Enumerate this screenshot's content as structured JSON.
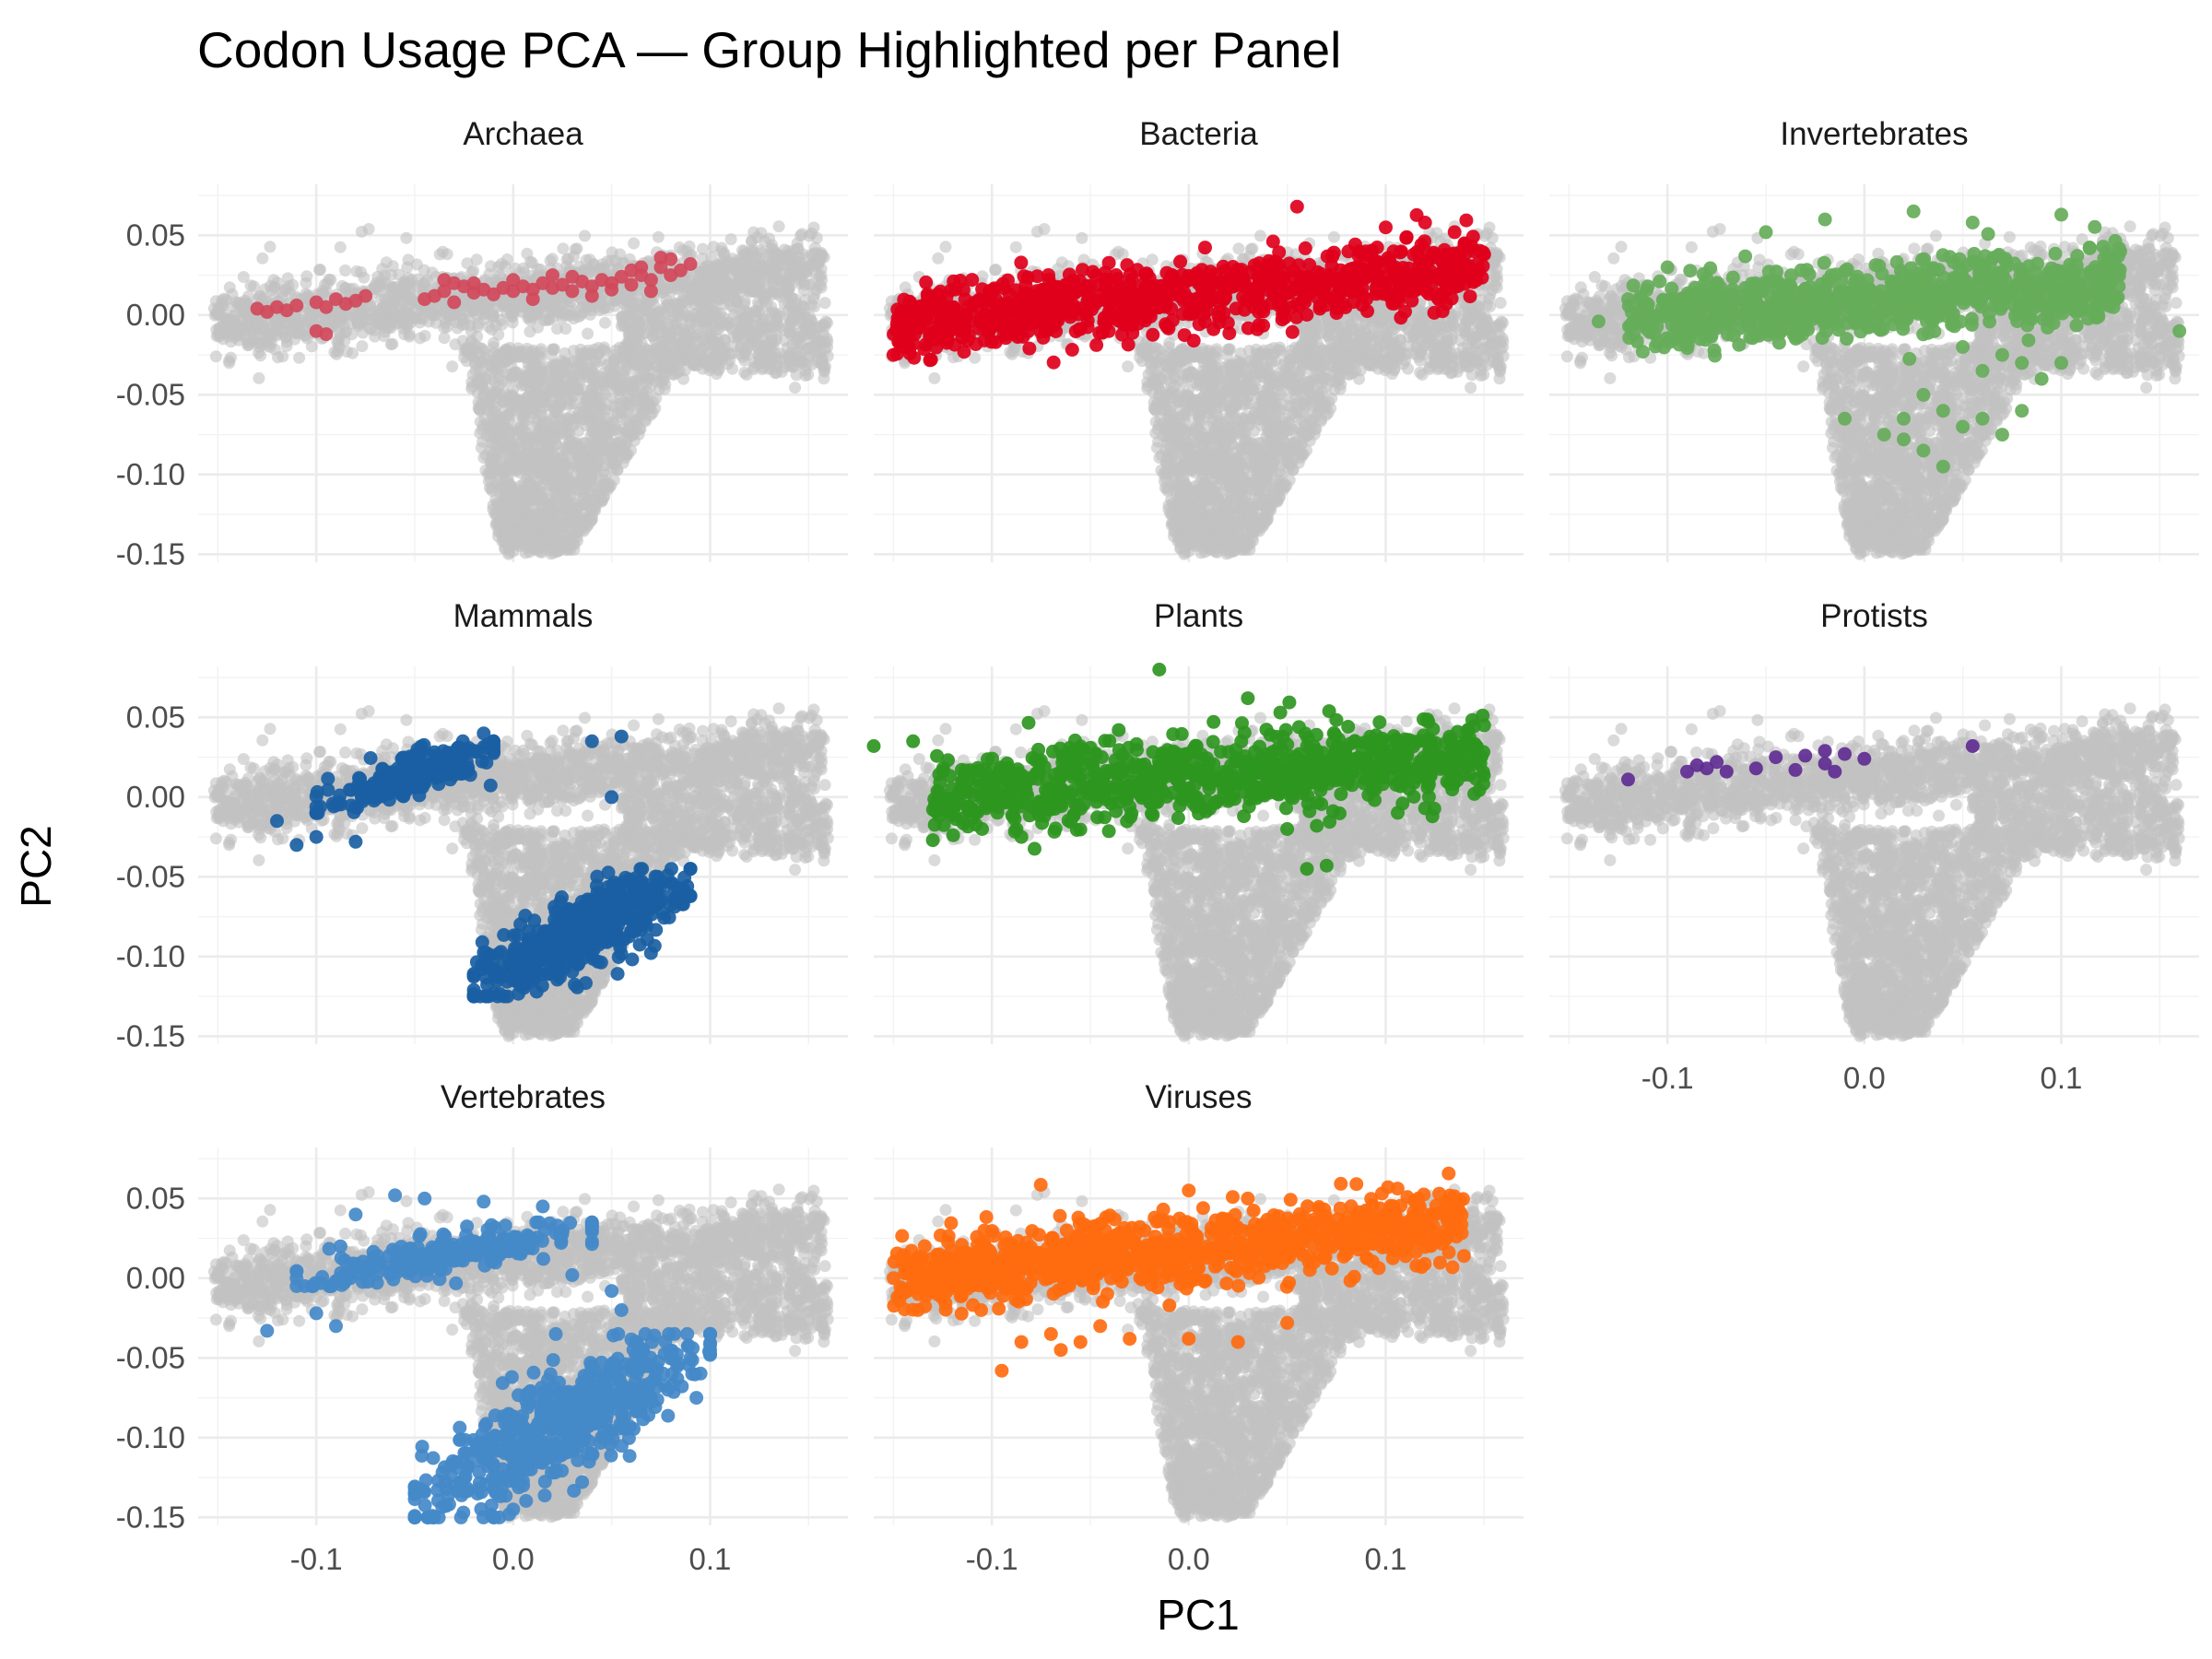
{
  "chart_data": {
    "type": "scatter",
    "title": "Codon Usage PCA — Group Highlighted per Panel",
    "xlabel": "PC1",
    "ylabel": "PC2",
    "xlim": [
      -0.16,
      0.17
    ],
    "ylim": [
      -0.155,
      0.082
    ],
    "x_ticks": [
      -0.1,
      0.0,
      0.1
    ],
    "x_tick_labels": [
      "-0.1",
      "0.0",
      "0.1"
    ],
    "y_ticks": [
      0.05,
      0.0,
      -0.05,
      -0.1,
      -0.15
    ],
    "y_tick_labels": [
      "0.05",
      "0.00",
      "-0.05",
      "-0.10",
      "-0.15"
    ],
    "grid": true,
    "legend": "none",
    "background_color": "#c2c2c2",
    "background_points": {
      "description_note": "",
      "clusters": [
        {
          "x_range": [
            -0.15,
            0.16
          ],
          "y_center_at_xmin": -0.005,
          "y_center_at_xmax": 0.03,
          "spread": 0.015
        },
        {
          "x_range": [
            -0.03,
            0.08
          ],
          "y_range": [
            -0.15,
            -0.02
          ]
        },
        {
          "x_range": [
            0.06,
            0.16
          ],
          "y_range": [
            -0.04,
            0.0
          ]
        }
      ]
    },
    "panels": [
      {
        "name": "Archaea",
        "color": "#d1495b",
        "highlight_points": [
          [
            -0.13,
            0.004
          ],
          [
            -0.125,
            0.002
          ],
          [
            -0.12,
            0.005
          ],
          [
            -0.115,
            0.003
          ],
          [
            -0.11,
            0.006
          ],
          [
            -0.1,
            0.008
          ],
          [
            -0.095,
            0.005
          ],
          [
            -0.09,
            0.01
          ],
          [
            -0.085,
            0.007
          ],
          [
            -0.08,
            0.009
          ],
          [
            -0.075,
            0.012
          ],
          [
            -0.1,
            -0.01
          ],
          [
            -0.095,
            -0.012
          ],
          [
            -0.04,
            0.012
          ],
          [
            -0.035,
            0.015
          ],
          [
            -0.03,
            0.02
          ],
          [
            -0.025,
            0.018
          ],
          [
            -0.02,
            0.014
          ],
          [
            -0.015,
            0.016
          ],
          [
            -0.01,
            0.013
          ],
          [
            -0.005,
            0.017
          ],
          [
            0.0,
            0.015
          ],
          [
            0.005,
            0.018
          ],
          [
            0.01,
            0.016
          ],
          [
            0.015,
            0.02
          ],
          [
            0.02,
            0.017
          ],
          [
            0.025,
            0.019
          ],
          [
            0.03,
            0.015
          ],
          [
            0.035,
            0.021
          ],
          [
            0.04,
            0.018
          ],
          [
            0.045,
            0.022
          ],
          [
            0.05,
            0.02
          ],
          [
            0.055,
            0.024
          ],
          [
            0.06,
            0.019
          ],
          [
            0.065,
            0.025
          ],
          [
            0.07,
            0.022
          ],
          [
            0.075,
            0.03
          ],
          [
            0.08,
            0.035
          ],
          [
            0.085,
            0.028
          ],
          [
            0.09,
            0.032
          ],
          [
            -0.03,
            0.008
          ],
          [
            -0.02,
            0.02
          ],
          [
            0.0,
            0.022
          ],
          [
            0.01,
            0.01
          ],
          [
            0.02,
            0.025
          ],
          [
            0.03,
            0.024
          ],
          [
            0.04,
            0.012
          ],
          [
            0.05,
            0.016
          ],
          [
            0.06,
            0.028
          ],
          [
            0.07,
            0.015
          ],
          [
            0.075,
            0.036
          ],
          [
            0.08,
            0.025
          ],
          [
            0.065,
            0.03
          ],
          [
            -0.045,
            0.01
          ],
          [
            -0.035,
            0.022
          ]
        ]
      },
      {
        "name": "Bacteria",
        "color": "#e0001b",
        "highlight_band": {
          "x_range": [
            -0.15,
            0.15
          ],
          "y_at_xmin": -0.006,
          "y_at_xmax": 0.03,
          "spread": 0.011
        },
        "highlight_points": [
          [
            -0.15,
            -0.025
          ],
          [
            -0.145,
            -0.02
          ],
          [
            0.055,
            0.068
          ],
          [
            0.13,
            0.038
          ],
          [
            0.15,
            0.038
          ],
          [
            0.12,
            0.058
          ],
          [
            0.135,
            0.052
          ],
          [
            0.14,
            0.045
          ],
          [
            0.1,
            0.055
          ],
          [
            0.09,
            0.04
          ]
        ]
      },
      {
        "name": "Invertebrates",
        "color": "#66ad5a",
        "highlight_band": {
          "x_range": [
            -0.12,
            0.13
          ],
          "y_at_xmin": 0.0,
          "y_at_xmax": 0.02,
          "spread": 0.011
        },
        "highlight_points": [
          [
            -0.135,
            -0.004
          ],
          [
            -0.12,
            0.01
          ],
          [
            -0.11,
            0.018
          ],
          [
            -0.1,
            0.03
          ],
          [
            -0.07,
            0.012
          ],
          [
            -0.05,
            0.052
          ],
          [
            -0.02,
            0.06
          ],
          [
            0.025,
            0.065
          ],
          [
            0.055,
            0.058
          ],
          [
            0.1,
            0.063
          ],
          [
            0.13,
            0.04
          ],
          [
            0.16,
            -0.01
          ],
          [
            0.05,
            -0.02
          ],
          [
            0.06,
            -0.035
          ],
          [
            0.07,
            -0.025
          ],
          [
            0.08,
            -0.03
          ],
          [
            0.09,
            -0.04
          ],
          [
            0.1,
            -0.03
          ],
          [
            0.03,
            -0.05
          ],
          [
            0.04,
            -0.06
          ],
          [
            0.05,
            -0.07
          ],
          [
            0.06,
            -0.065
          ],
          [
            0.07,
            -0.075
          ],
          [
            0.02,
            -0.065
          ],
          [
            0.01,
            -0.075
          ],
          [
            0.02,
            -0.078
          ],
          [
            -0.01,
            -0.065
          ],
          [
            0.03,
            -0.085
          ],
          [
            0.04,
            -0.095
          ],
          [
            0.08,
            -0.06
          ]
        ]
      },
      {
        "name": "Mammals",
        "color": "#1a5fa3",
        "highlight_clusters": [
          {
            "x_range": [
              -0.1,
              -0.01
            ],
            "y_range": [
              -0.01,
              0.035
            ]
          },
          {
            "x_range": [
              -0.02,
              0.09
            ],
            "y_range": [
              -0.125,
              -0.045
            ]
          }
        ],
        "highlight_points": [
          [
            -0.12,
            -0.015
          ],
          [
            -0.1,
            -0.025
          ],
          [
            -0.11,
            -0.03
          ],
          [
            -0.08,
            -0.028
          ],
          [
            -0.015,
            0.04
          ],
          [
            0.04,
            0.035
          ],
          [
            0.055,
            0.038
          ],
          [
            0.05,
            0.0
          ],
          [
            0.09,
            -0.045
          ],
          [
            0.085,
            -0.062
          ]
        ]
      },
      {
        "name": "Plants",
        "color": "#2e961f",
        "highlight_band": {
          "x_range": [
            -0.13,
            0.15
          ],
          "y_at_xmin": 0.0,
          "y_at_xmax": 0.025,
          "spread": 0.012
        },
        "highlight_points": [
          [
            -0.16,
            0.032
          ],
          [
            -0.14,
            0.035
          ],
          [
            -0.13,
            -0.027
          ],
          [
            -0.105,
            -0.02
          ],
          [
            -0.085,
            -0.025
          ],
          [
            -0.015,
            0.08
          ],
          [
            0.03,
            0.062
          ],
          [
            0.05,
            -0.02
          ],
          [
            0.065,
            -0.018
          ],
          [
            0.06,
            -0.045
          ],
          [
            0.07,
            -0.043
          ],
          [
            0.15,
            0.045
          ],
          [
            0.14,
            0.028
          ],
          [
            0.12,
            -0.007
          ],
          [
            0.145,
            0.002
          ]
        ]
      },
      {
        "name": "Protists",
        "color": "#5f2d91",
        "highlight_points": [
          [
            -0.12,
            0.011
          ],
          [
            -0.09,
            0.016
          ],
          [
            -0.085,
            0.02
          ],
          [
            -0.08,
            0.018
          ],
          [
            -0.075,
            0.022
          ],
          [
            -0.07,
            0.016
          ],
          [
            -0.055,
            0.018
          ],
          [
            -0.045,
            0.025
          ],
          [
            -0.035,
            0.017
          ],
          [
            -0.03,
            0.026
          ],
          [
            -0.02,
            0.021
          ],
          [
            -0.015,
            0.016
          ],
          [
            -0.01,
            0.027
          ],
          [
            -0.02,
            0.029
          ],
          [
            0.0,
            0.024
          ],
          [
            0.055,
            0.032
          ]
        ]
      },
      {
        "name": "Vertebrates",
        "color": "#4489c8",
        "highlight_clusters": [
          {
            "x_range": [
              -0.11,
              0.04
            ],
            "y_range": [
              -0.005,
              0.035
            ]
          },
          {
            "x_range": [
              -0.05,
              0.1
            ],
            "y_range": [
              -0.15,
              -0.035
            ]
          }
        ],
        "highlight_points": [
          [
            -0.125,
            -0.033
          ],
          [
            -0.1,
            -0.022
          ],
          [
            -0.09,
            -0.03
          ],
          [
            -0.08,
            0.04
          ],
          [
            -0.06,
            0.052
          ],
          [
            -0.045,
            0.05
          ],
          [
            -0.015,
            0.048
          ],
          [
            0.015,
            0.045
          ],
          [
            0.03,
            0.002
          ],
          [
            0.05,
            -0.008
          ],
          [
            0.055,
            -0.02
          ],
          [
            0.1,
            -0.045
          ],
          [
            0.09,
            -0.05
          ],
          [
            -0.01,
            -0.15
          ],
          [
            0.0,
            -0.145
          ]
        ]
      },
      {
        "name": "Viruses",
        "color": "#ff6b0f",
        "highlight_band": {
          "x_range": [
            -0.15,
            0.14
          ],
          "y_at_xmin": 0.0,
          "y_at_xmax": 0.035,
          "spread": 0.012
        },
        "highlight_points": [
          [
            -0.095,
            -0.058
          ],
          [
            -0.085,
            -0.04
          ],
          [
            -0.07,
            -0.035
          ],
          [
            -0.065,
            -0.045
          ],
          [
            -0.055,
            -0.04
          ],
          [
            -0.045,
            -0.03
          ],
          [
            -0.03,
            -0.038
          ],
          [
            0.0,
            -0.038
          ],
          [
            0.025,
            -0.04
          ],
          [
            0.05,
            -0.028
          ],
          [
            0.0,
            0.055
          ],
          [
            0.03,
            0.05
          ],
          [
            0.1,
            0.04
          ],
          [
            0.12,
            0.04
          ],
          [
            0.135,
            0.04
          ]
        ]
      }
    ]
  }
}
